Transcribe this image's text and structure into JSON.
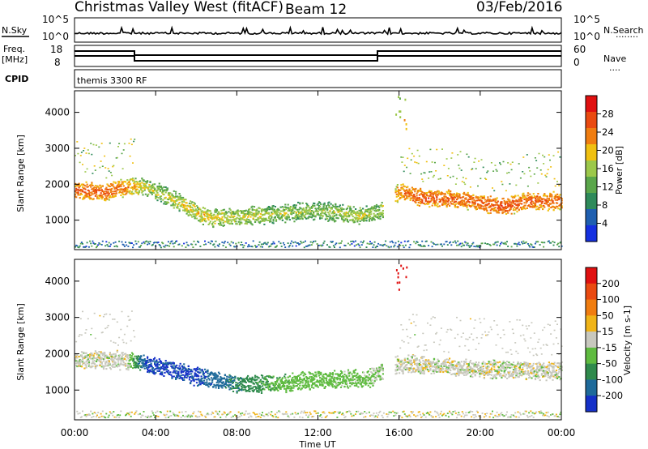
{
  "header": {
    "title": "Christmas Valley West (fitACF)",
    "beam": "Beam 12",
    "date": "03/Feb/2016"
  },
  "sky_panel": {
    "left_label": "N.Sky",
    "right_label": "N.Search",
    "dots": "........",
    "left_ticks": [
      "10^5",
      "10^0"
    ],
    "right_ticks": [
      "10^5",
      "10^0"
    ]
  },
  "freq_panel": {
    "left_label_1": "Freq.",
    "left_label_2": "[MHz]",
    "right_label": "Nave",
    "dots": "....",
    "left_ticks": [
      "18",
      "8"
    ],
    "right_ticks": [
      "60",
      "0"
    ]
  },
  "cpid_panel": {
    "label": "CPID",
    "program": "themis 3300 RF"
  },
  "time_axis": {
    "label": "Time UT",
    "ticks": [
      "00:00",
      "04:00",
      "08:00",
      "12:00",
      "16:00",
      "20:00",
      "00:00"
    ]
  },
  "colors": {
    "power_scale": [
      "#1530e0",
      "#1f5fb0",
      "#2e8a5a",
      "#5aa64a",
      "#9cc84a",
      "#f0c010",
      "#f07d10",
      "#ea4a10",
      "#e01010"
    ],
    "velocity_scale": [
      "#1530c8",
      "#1e6a9a",
      "#2f8a4c",
      "#5fbb40",
      "#c8c8be",
      "#f0b418",
      "#f07d10",
      "#ea4a10",
      "#e01010"
    ]
  },
  "chart_data": [
    {
      "type": "heatmap",
      "panel": "power",
      "ylabel": "Slant Range [km]",
      "xlabel": "Time UT",
      "x_range_hours": [
        0,
        24
      ],
      "ylim": [
        180,
        4600
      ],
      "y_ticks": [
        1000,
        2000,
        3000,
        4000
      ],
      "colorbar": {
        "label": "Power [dB]",
        "ticks": [
          "28",
          "24",
          "20",
          "16",
          "12",
          "8",
          "4"
        ],
        "range": [
          0,
          32
        ]
      },
      "echo_band": [
        {
          "t": 0.0,
          "range_km": 1800,
          "value": 26
        },
        {
          "t": 1.5,
          "range_km": 1750,
          "value": 26
        },
        {
          "t": 2.5,
          "range_km": 1900,
          "value": 24
        },
        {
          "t": 3.5,
          "range_km": 1900,
          "value": 18
        },
        {
          "t": 5.0,
          "range_km": 1500,
          "value": 18
        },
        {
          "t": 6.5,
          "range_km": 1050,
          "value": 20
        },
        {
          "t": 8.0,
          "range_km": 1050,
          "value": 18
        },
        {
          "t": 10.0,
          "range_km": 1150,
          "value": 17
        },
        {
          "t": 12.0,
          "range_km": 1250,
          "value": 16
        },
        {
          "t": 14.0,
          "range_km": 1100,
          "value": 18
        },
        {
          "t": 15.0,
          "range_km": 1200,
          "value": 16
        },
        {
          "t": 16.0,
          "range_km": 1800,
          "value": 24
        },
        {
          "t": 17.0,
          "range_km": 1600,
          "value": 27
        },
        {
          "t": 19.0,
          "range_km": 1550,
          "value": 26
        },
        {
          "t": 21.0,
          "range_km": 1350,
          "value": 27
        },
        {
          "t": 22.5,
          "range_km": 1500,
          "value": 26
        },
        {
          "t": 24.0,
          "range_km": 1500,
          "value": 26
        }
      ]
    },
    {
      "type": "heatmap",
      "panel": "velocity",
      "ylabel": "Slant Range [km]",
      "xlabel": "Time UT",
      "x_range_hours": [
        0,
        24
      ],
      "ylim": [
        180,
        4600
      ],
      "y_ticks": [
        1000,
        2000,
        3000,
        4000
      ],
      "colorbar": {
        "label": "Velocity [m s-1]",
        "ticks": [
          "200",
          "100",
          "50",
          "15",
          "-15",
          "-50",
          "-100",
          "-200"
        ],
        "range": [
          -250,
          250
        ]
      },
      "echo_band": [
        {
          "t": 0.0,
          "range_km": 1800,
          "value": 0
        },
        {
          "t": 2.5,
          "range_km": 1800,
          "value": 0
        },
        {
          "t": 3.5,
          "range_km": 1700,
          "value": -200
        },
        {
          "t": 6.0,
          "range_km": 1350,
          "value": -200
        },
        {
          "t": 8.0,
          "range_km": 1150,
          "value": -130
        },
        {
          "t": 10.0,
          "range_km": 1150,
          "value": -70
        },
        {
          "t": 12.0,
          "range_km": 1250,
          "value": -50
        },
        {
          "t": 14.5,
          "range_km": 1300,
          "value": -40
        },
        {
          "t": 16.0,
          "range_km": 1700,
          "value": 0
        },
        {
          "t": 20.0,
          "range_km": 1550,
          "value": 0
        },
        {
          "t": 24.0,
          "range_km": 1500,
          "value": 0
        }
      ]
    }
  ]
}
